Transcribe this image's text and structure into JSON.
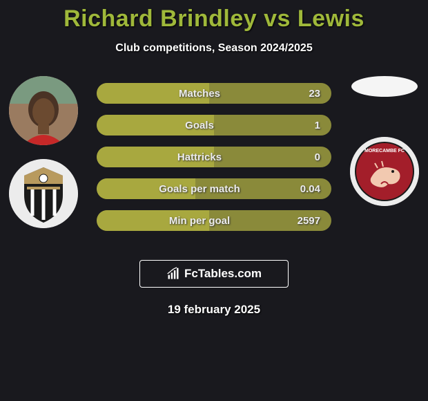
{
  "title": "Richard Brindley vs Lewis",
  "subtitle": "Club competitions, Season 2024/2025",
  "date": "19 february 2025",
  "branding": {
    "text": "FcTables.com"
  },
  "colors": {
    "background": "#19191e",
    "accent": "#9fb83a",
    "bar_base": "#8a8a3a",
    "bar_fill": "#a8a83f",
    "text": "#ffffff"
  },
  "stats": [
    {
      "label": "Matches",
      "value": "23",
      "fill_pct": 48
    },
    {
      "label": "Goals",
      "value": "1",
      "fill_pct": 50
    },
    {
      "label": "Hattricks",
      "value": "0",
      "fill_pct": 50
    },
    {
      "label": "Goals per match",
      "value": "0.04",
      "fill_pct": 42
    },
    {
      "label": "Min per goal",
      "value": "2597",
      "fill_pct": 48
    }
  ],
  "left_side": {
    "player_avatar": "richard-brindley-photo",
    "club_badge": "notts-county-badge"
  },
  "right_side": {
    "player_avatar": "blank-oval",
    "club_badge": "morecambe-badge"
  }
}
